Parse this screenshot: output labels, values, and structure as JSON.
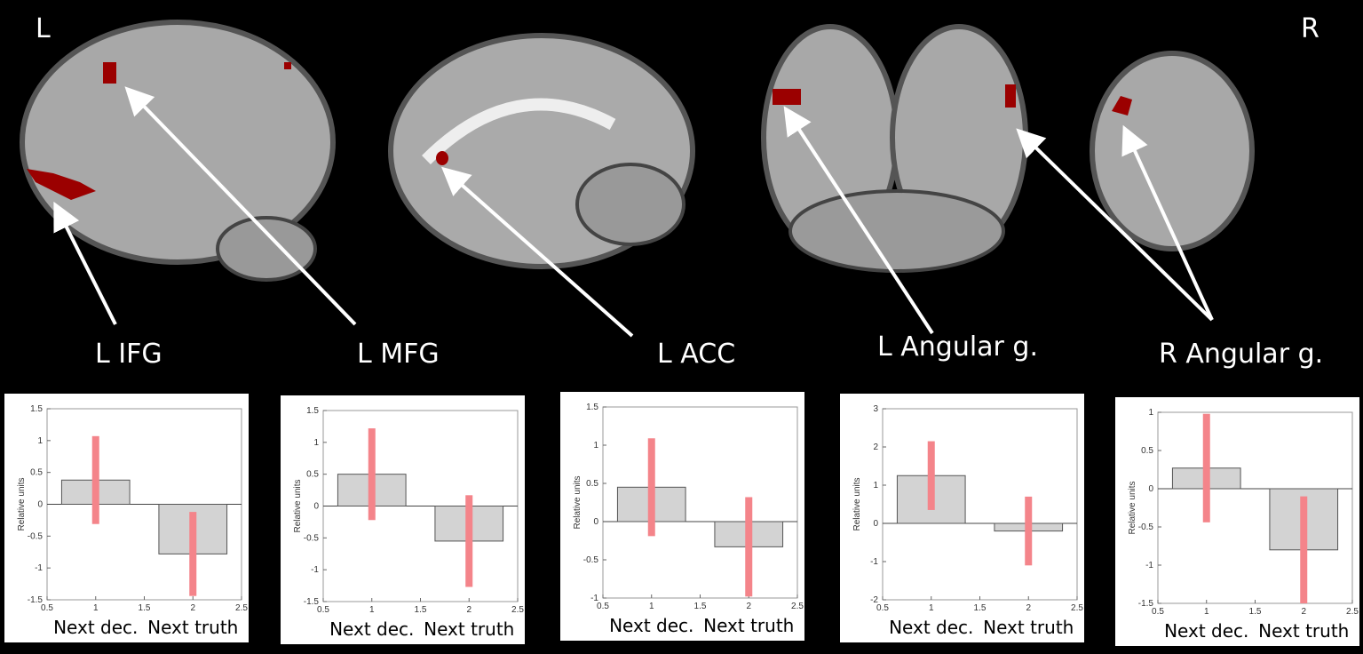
{
  "figure": {
    "left": "L",
    "right": "R",
    "regions": [
      "L IFG",
      "L MFG",
      "L ACC",
      "L Angular g.",
      "R Angular g."
    ]
  },
  "chart_data": [
    {
      "type": "bar",
      "ylabel": "Relative units",
      "categories": [
        "Next dec.",
        "Next truth"
      ],
      "x": [
        1,
        2
      ],
      "values": [
        0.38,
        -0.78
      ],
      "errors": [
        0.69,
        0.66
      ],
      "color": "#d3d3d3",
      "error_color": "#f4848a",
      "xlim": [
        0.5,
        2.5
      ],
      "xticks": [
        0.5,
        1,
        1.5,
        2,
        2.5
      ],
      "ylim": [
        -1.5,
        1.5
      ],
      "yticks": [
        -1.5,
        -1,
        -0.5,
        0,
        0.5,
        1,
        1.5
      ]
    },
    {
      "type": "bar",
      "ylabel": "Relative units",
      "categories": [
        "Next dec.",
        "Next truth"
      ],
      "x": [
        1,
        2
      ],
      "values": [
        0.5,
        -0.55
      ],
      "errors": [
        0.72,
        0.72
      ],
      "color": "#d3d3d3",
      "error_color": "#f4848a",
      "xlim": [
        0.5,
        2.5
      ],
      "xticks": [
        0.5,
        1,
        1.5,
        2,
        2.5
      ],
      "ylim": [
        -1.5,
        1.5
      ],
      "yticks": [
        -1.5,
        -1,
        -0.5,
        0,
        0.5,
        1,
        1.5
      ]
    },
    {
      "type": "bar",
      "ylabel": "Relative units",
      "categories": [
        "Next dec.",
        "Next truth"
      ],
      "x": [
        1,
        2
      ],
      "values": [
        0.45,
        -0.33
      ],
      "errors": [
        0.64,
        0.65
      ],
      "color": "#d3d3d3",
      "error_color": "#f4848a",
      "xlim": [
        0.5,
        2.5
      ],
      "xticks": [
        0.5,
        1,
        1.5,
        2,
        2.5
      ],
      "ylim": [
        -1,
        1.5
      ],
      "yticks": [
        -1,
        -0.5,
        0,
        0.5,
        1,
        1.5
      ]
    },
    {
      "type": "bar",
      "ylabel": "Relative units",
      "categories": [
        "Next dec.",
        "Next truth"
      ],
      "x": [
        1,
        2
      ],
      "values": [
        1.25,
        -0.2
      ],
      "errors": [
        0.9,
        0.9
      ],
      "color": "#d3d3d3",
      "error_color": "#f4848a",
      "xlim": [
        0.5,
        2.5
      ],
      "xticks": [
        0.5,
        1,
        1.5,
        2,
        2.5
      ],
      "ylim": [
        -2,
        3
      ],
      "yticks": [
        -2,
        -1,
        0,
        1,
        2,
        3
      ]
    },
    {
      "type": "bar",
      "ylabel": "Relative units",
      "categories": [
        "Next dec.",
        "Next truth"
      ],
      "x": [
        1,
        2
      ],
      "values": [
        0.27,
        -0.8
      ],
      "errors": [
        0.71,
        0.7
      ],
      "color": "#d3d3d3",
      "error_color": "#f4848a",
      "xlim": [
        0.5,
        2.5
      ],
      "xticks": [
        0.5,
        1,
        1.5,
        2,
        2.5
      ],
      "ylim": [
        -1.5,
        1
      ],
      "yticks": [
        -1.5,
        -1,
        -0.5,
        0,
        0.5,
        1
      ]
    }
  ]
}
